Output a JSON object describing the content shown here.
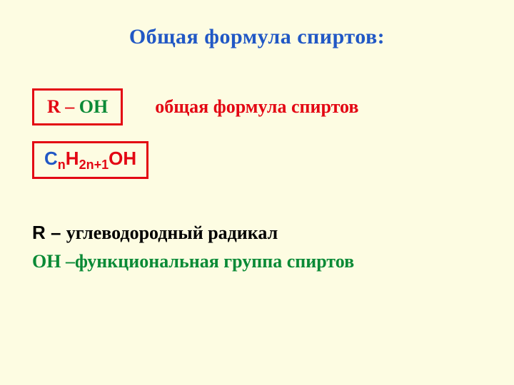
{
  "slide": {
    "title": "Общая формула спиртов:",
    "background_color": "#fdfce2",
    "title_color": "#2158c5",
    "title_fontsize": 30,
    "formula_box1": {
      "r_dash": "R – ",
      "oh": "ОН",
      "border_color": "#e30613",
      "r_color": "#e30613",
      "oh_color": "#0a8a36"
    },
    "desc1": "общая формула спиртов",
    "desc1_color": "#e30613",
    "formula_box2": {
      "c": "C",
      "n": "n",
      "h": "H",
      "sub2": "2n+1",
      "oh": "OH",
      "c_color": "#2158c5",
      "rest_color": "#e30613",
      "border_color": "#e30613"
    },
    "line_r": {
      "prefix": "R – ",
      "text": "углеводородный радикал",
      "color": "#000000"
    },
    "line_oh": {
      "prefix": "ОН –",
      "text": "функциональная группа спиртов",
      "color": "#0a8a36"
    }
  }
}
